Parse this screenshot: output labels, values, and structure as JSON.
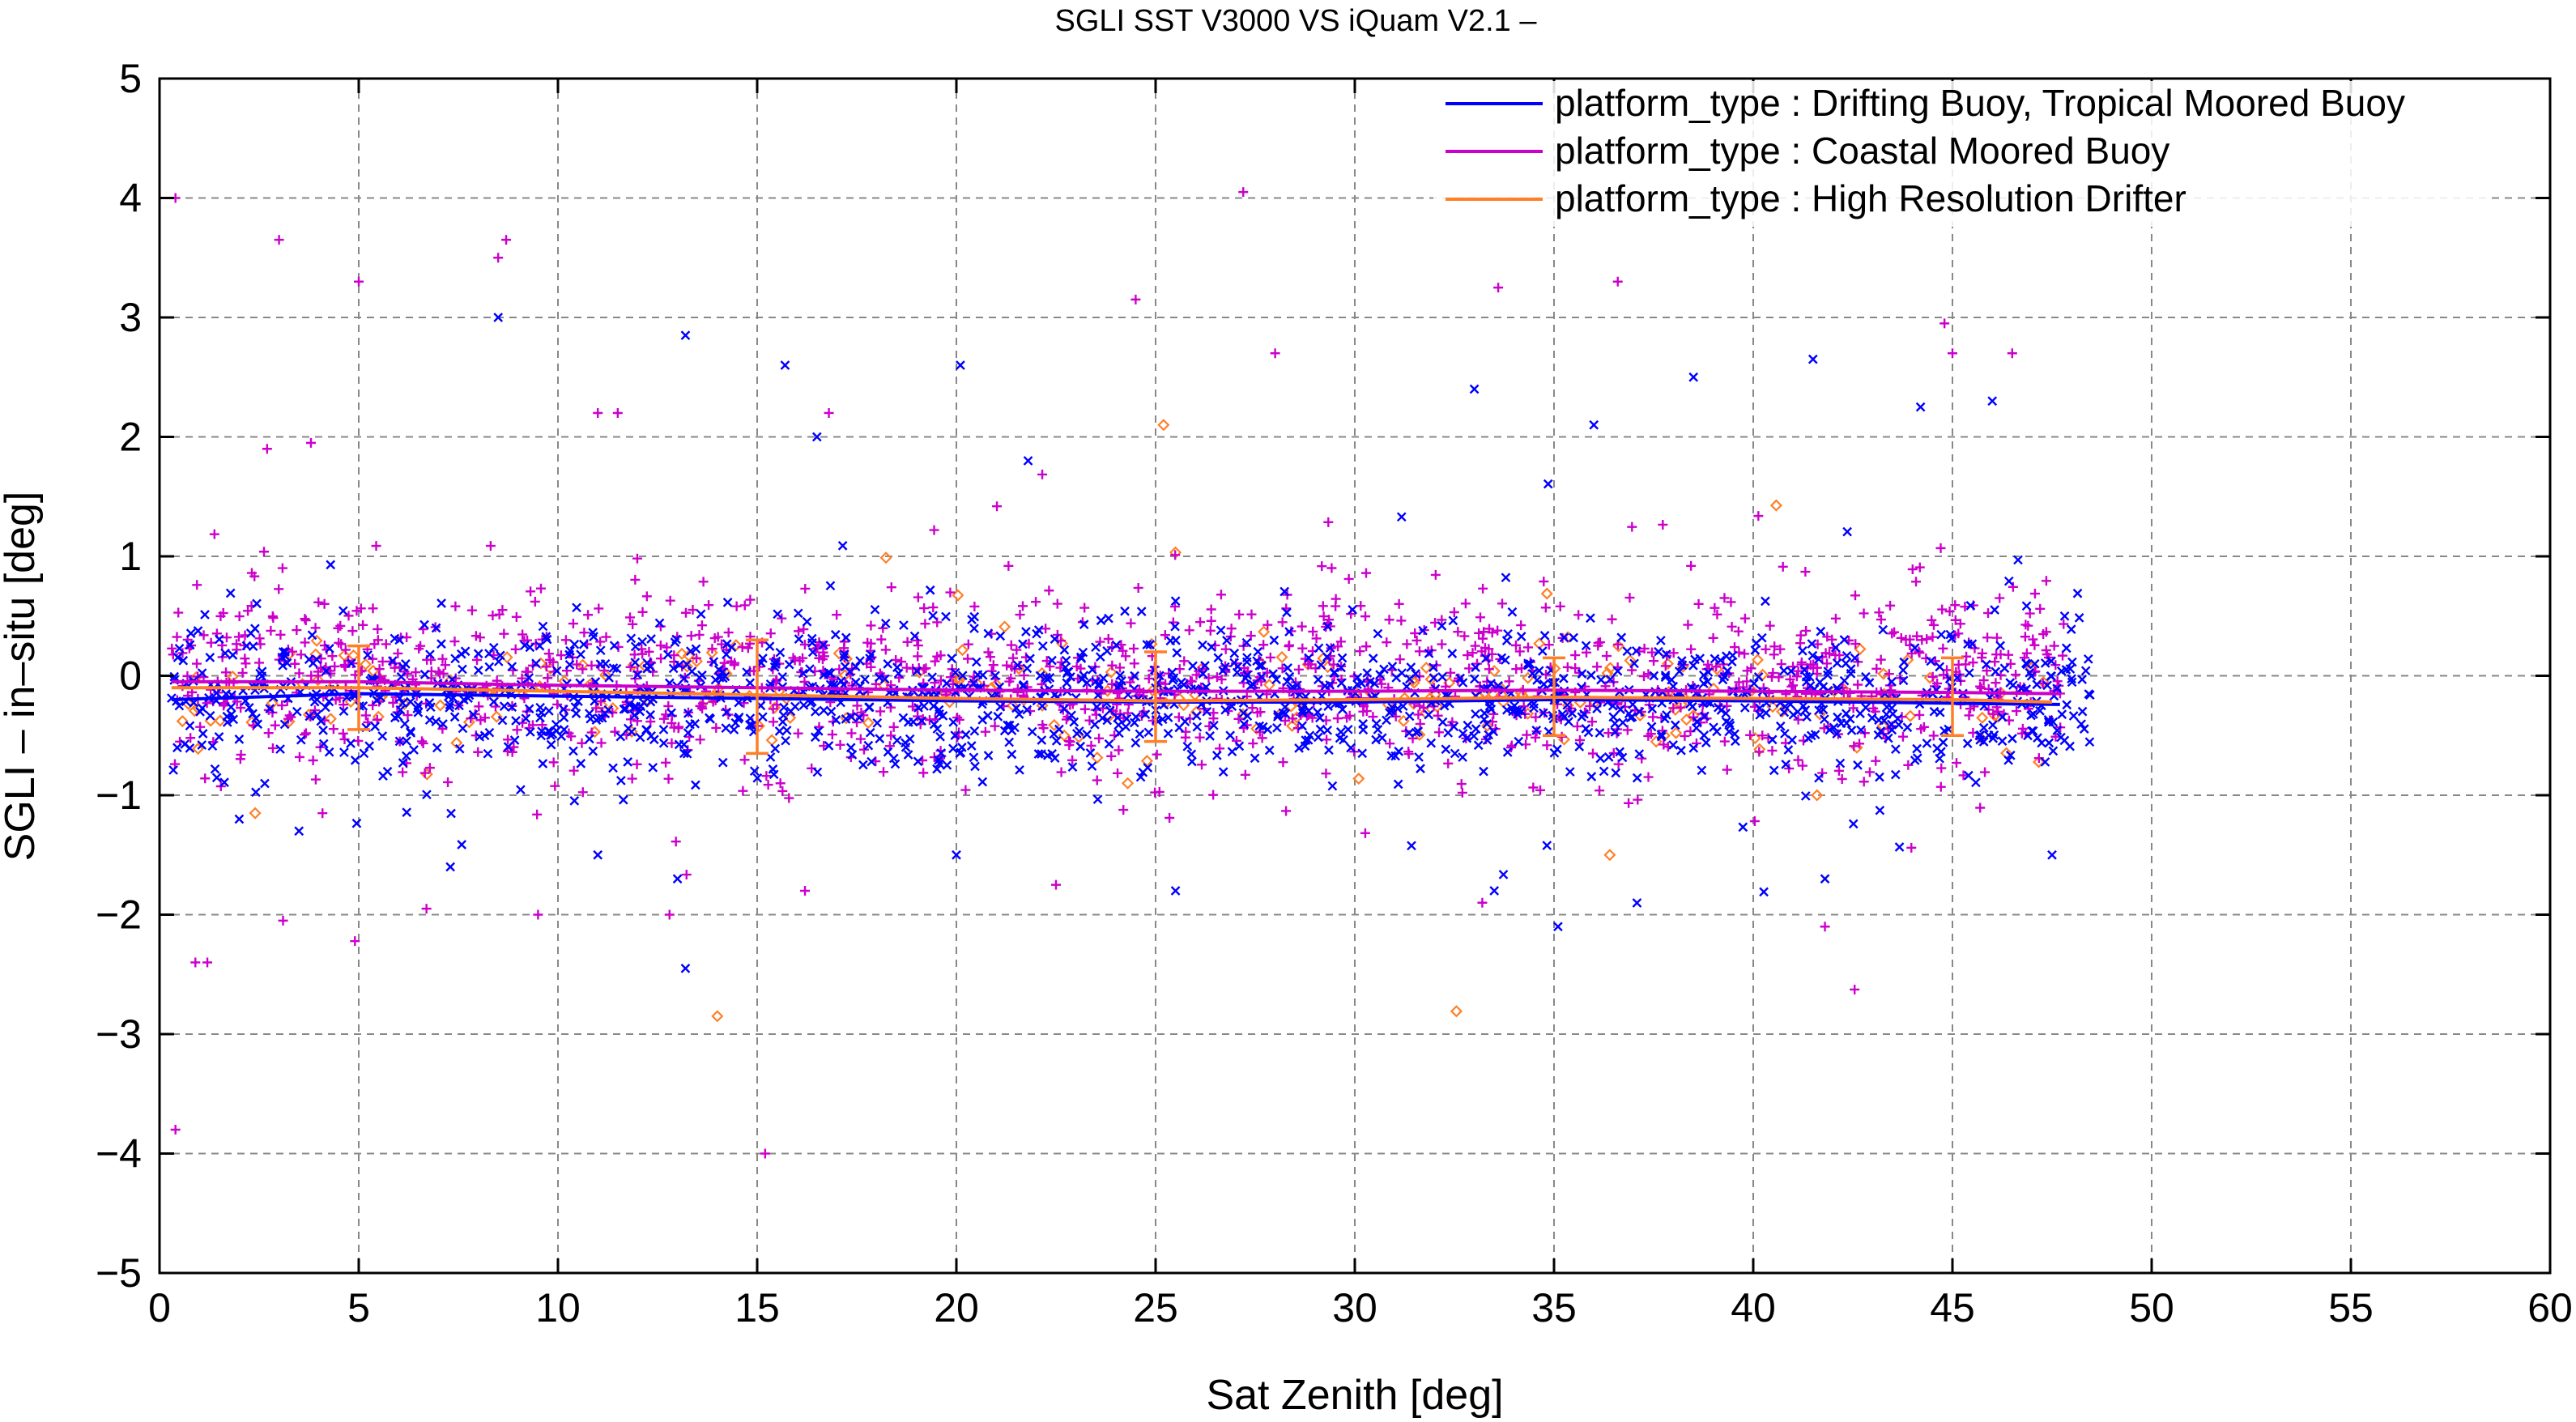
{
  "chart_data": {
    "type": "scatter",
    "title": "SGLI SST V3000 VS iQuam V2.1  –",
    "xlabel": "Sat Zenith [deg]",
    "ylabel": "SGLI – in–situ [deg]",
    "xlim": [
      0,
      60
    ],
    "ylim": [
      -5,
      5
    ],
    "x_ticks": [
      0,
      5,
      10,
      15,
      20,
      25,
      30,
      35,
      40,
      45,
      50,
      55,
      60
    ],
    "y_ticks": [
      -5,
      -4,
      -3,
      -2,
      -1,
      0,
      1,
      2,
      3,
      4,
      5
    ],
    "x_tick_labels": [
      "0",
      "5",
      "10",
      "15",
      "20",
      "25",
      "30",
      "35",
      "40",
      "45",
      "50",
      "55",
      "60"
    ],
    "y_tick_labels": [
      "−5",
      "−4",
      "−3",
      "−2",
      "−1",
      "0",
      "1",
      "2",
      "3",
      "4",
      "5"
    ],
    "grid": true,
    "legend_position": "top-right",
    "series": [
      {
        "name": "platform_type : Drifting Buoy, Tropical Moored Buoy",
        "color": "#0000ff",
        "marker": "x",
        "x_range": [
          0.3,
          48.5
        ],
        "center": -0.2,
        "spread": 0.3,
        "count": 1400,
        "outliers": [
          [
            8.5,
            3.0
          ],
          [
            13.2,
            2.85
          ],
          [
            15.7,
            2.6
          ],
          [
            16.5,
            2.0
          ],
          [
            20.1,
            2.6
          ],
          [
            21.8,
            1.8
          ],
          [
            33.0,
            2.4
          ],
          [
            41.5,
            2.65
          ],
          [
            44.2,
            2.25
          ],
          [
            46.0,
            2.3
          ],
          [
            38.5,
            2.5
          ],
          [
            36.0,
            2.1
          ],
          [
            13.2,
            -2.45
          ],
          [
            35.1,
            -2.1
          ],
          [
            13.0,
            -1.7
          ],
          [
            33.5,
            -1.8
          ],
          [
            7.3,
            -1.6
          ],
          [
            41.8,
            -1.7
          ],
          [
            25.5,
            -1.8
          ],
          [
            20.0,
            -1.5
          ],
          [
            47.5,
            -1.5
          ],
          [
            2.0,
            -1.2
          ],
          [
            3.5,
            -1.3
          ],
          [
            11.0,
            -1.5
          ]
        ],
        "mean_line": [
          [
            0.3,
            -0.2
          ],
          [
            5,
            -0.15
          ],
          [
            10,
            -0.17
          ],
          [
            15,
            -0.19
          ],
          [
            20,
            -0.21
          ],
          [
            25,
            -0.22
          ],
          [
            30,
            -0.22
          ],
          [
            35,
            -0.2
          ],
          [
            40,
            -0.21
          ],
          [
            45,
            -0.23
          ],
          [
            47.7,
            -0.24
          ]
        ]
      },
      {
        "name": "platform_type : Coastal Moored Buoy",
        "color": "#cc00cc",
        "marker": "+",
        "x_range": [
          0.3,
          47.8
        ],
        "center": -0.05,
        "spread": 0.38,
        "count": 1400,
        "outliers": [
          [
            0.4,
            4.0
          ],
          [
            3.0,
            3.65
          ],
          [
            5.0,
            3.3
          ],
          [
            8.5,
            3.5
          ],
          [
            8.7,
            3.65
          ],
          [
            27.2,
            4.05
          ],
          [
            33.6,
            3.25
          ],
          [
            36.6,
            3.3
          ],
          [
            24.5,
            3.15
          ],
          [
            44.8,
            2.95
          ],
          [
            45.0,
            2.7
          ],
          [
            46.5,
            2.7
          ],
          [
            11.0,
            2.2
          ],
          [
            11.5,
            2.2
          ],
          [
            16.8,
            2.2
          ],
          [
            28.0,
            2.7
          ],
          [
            0.9,
            -2.4
          ],
          [
            1.2,
            -2.4
          ],
          [
            0.4,
            -3.8
          ],
          [
            15.2,
            -4.0
          ],
          [
            3.1,
            -2.05
          ],
          [
            9.5,
            -2.0
          ],
          [
            12.8,
            -2.0
          ],
          [
            6.7,
            -1.95
          ],
          [
            41.8,
            -2.1
          ],
          [
            33.2,
            -1.9
          ],
          [
            16.2,
            -1.8
          ],
          [
            22.5,
            -1.75
          ],
          [
            2.7,
            1.9
          ],
          [
            3.8,
            1.95
          ]
        ],
        "mean_line": [
          [
            0.3,
            -0.05
          ],
          [
            5,
            -0.05
          ],
          [
            10,
            -0.08
          ],
          [
            15,
            -0.1
          ],
          [
            20,
            -0.12
          ],
          [
            25,
            -0.13
          ],
          [
            30,
            -0.13
          ],
          [
            35,
            -0.12
          ],
          [
            40,
            -0.13
          ],
          [
            45,
            -0.14
          ],
          [
            47.7,
            -0.15
          ]
        ]
      },
      {
        "name": "platform_type : High Resolution Drifter",
        "color": "#ff7f27",
        "marker": "o",
        "x_range": [
          0.3,
          47.5
        ],
        "center": -0.15,
        "spread": 0.22,
        "count": 220,
        "outliers": [
          [
            14.0,
            -2.85
          ],
          [
            2.4,
            -1.15
          ],
          [
            36.4,
            -1.5
          ],
          [
            41.6,
            -1.0
          ],
          [
            24.3,
            -0.9
          ],
          [
            25.2,
            2.1
          ]
        ],
        "mean_line": [
          [
            0.3,
            -0.1
          ],
          [
            5,
            -0.1
          ],
          [
            10,
            -0.13
          ],
          [
            15,
            -0.16
          ],
          [
            20,
            -0.19
          ],
          [
            25,
            -0.21
          ],
          [
            30,
            -0.2
          ],
          [
            35,
            -0.18
          ],
          [
            40,
            -0.19
          ],
          [
            45,
            -0.2
          ],
          [
            47.5,
            -0.22
          ]
        ],
        "error_bars": [
          {
            "x": 5,
            "mean": -0.12,
            "low": -0.45,
            "high": 0.25
          },
          {
            "x": 15,
            "mean": -0.18,
            "low": -0.65,
            "high": 0.3
          },
          {
            "x": 25,
            "mean": -0.2,
            "low": -0.55,
            "high": 0.2
          },
          {
            "x": 35,
            "mean": -0.19,
            "low": -0.5,
            "high": 0.15
          },
          {
            "x": 45,
            "mean": -0.2,
            "low": -0.5,
            "high": 0.15
          }
        ]
      }
    ]
  }
}
